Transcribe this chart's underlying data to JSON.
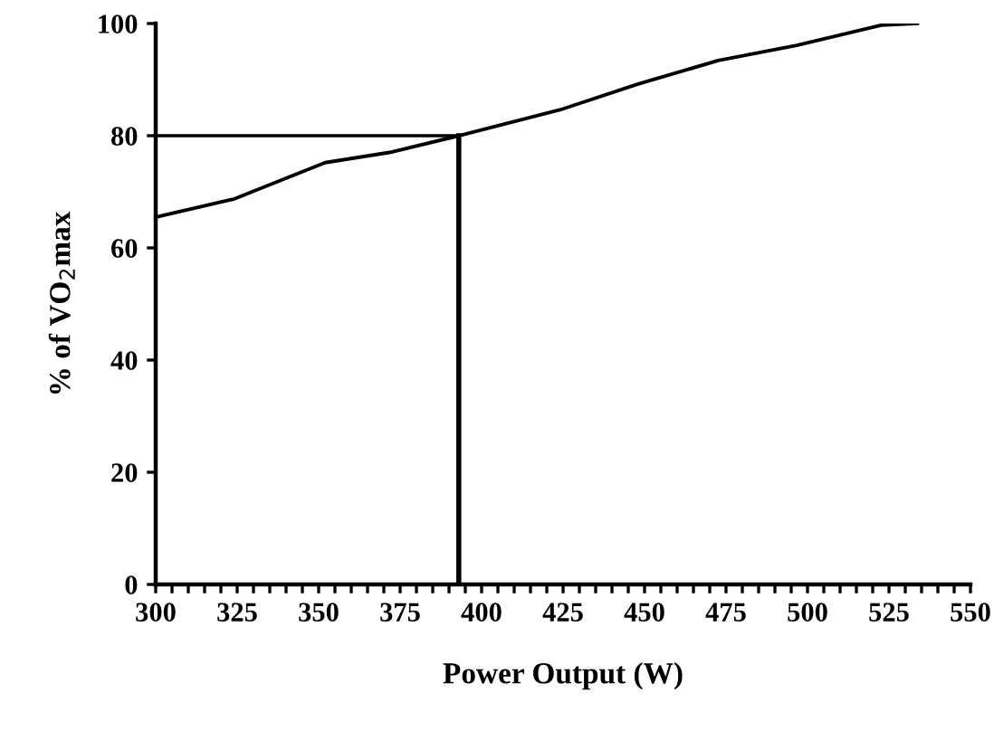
{
  "chart_data": {
    "type": "line",
    "xlabel": "Power Output (W)",
    "ylabel": "% of VO$_{2}$max",
    "x": [
      300,
      324,
      352,
      372.6,
      393,
      424,
      448,
      472.6,
      496.7,
      522.6,
      533.7
    ],
    "series": [
      {
        "color": "#000000",
        "values": [
          65.5,
          68.7,
          75.2,
          77.1,
          80,
          84.6,
          89.2,
          93.4,
          96.1,
          99.7,
          100
        ]
      }
    ],
    "xlim": [
      300,
      550
    ],
    "ylim": [
      0,
      100
    ],
    "xticks": [
      300,
      {
        "value": 305,
        "label": null
      },
      {
        "value": 310,
        "label": null
      },
      {
        "value": 315,
        "label": null
      },
      {
        "value": 320,
        "label": null
      },
      325,
      {
        "value": 330,
        "label": null
      },
      {
        "value": 335,
        "label": null
      },
      {
        "value": 340,
        "label": null
      },
      {
        "value": 345,
        "label": null
      },
      350,
      {
        "value": 355,
        "label": null
      },
      {
        "value": 360,
        "label": null
      },
      {
        "value": 365,
        "label": null
      },
      {
        "value": 370,
        "label": null
      },
      375,
      {
        "value": 380,
        "label": null
      },
      {
        "value": 385,
        "label": null
      },
      {
        "value": 390,
        "label": null
      },
      {
        "value": 395,
        "label": null
      },
      400,
      {
        "value": 405,
        "label": null
      },
      {
        "value": 410,
        "label": null
      },
      {
        "value": 415,
        "label": null
      },
      {
        "value": 420,
        "label": null
      },
      425,
      {
        "value": 430,
        "label": null
      },
      {
        "value": 435,
        "label": null
      },
      {
        "value": 440,
        "label": null
      },
      {
        "value": 445,
        "label": null
      },
      450,
      {
        "value": 455,
        "label": null
      },
      {
        "value": 460,
        "label": null
      },
      {
        "value": 465,
        "label": null
      },
      {
        "value": 470,
        "label": null
      },
      475,
      {
        "value": 480,
        "label": null
      },
      {
        "value": 485,
        "label": null
      },
      {
        "value": 490,
        "label": null
      },
      {
        "value": 495,
        "label": null
      },
      500,
      {
        "value": 505,
        "label": null
      },
      {
        "value": 510,
        "label": null
      },
      {
        "value": 515,
        "label": null
      },
      {
        "value": 520,
        "label": null
      },
      525,
      {
        "value": 530,
        "label": null
      },
      {
        "value": 535,
        "label": null
      },
      {
        "value": 540,
        "label": null
      },
      {
        "value": 545,
        "label": null
      },
      550
    ],
    "yticks": [
      0,
      20,
      40,
      60,
      80,
      100
    ],
    "ref_lines": [
      {
        "axis": "y",
        "value": 80,
        "color": "#000000"
      },
      {
        "axis": "x",
        "value": 393,
        "color": "#000000"
      }
    ],
    "grid": false,
    "legend": false,
    "marker": "none",
    "line_style": "solid"
  }
}
